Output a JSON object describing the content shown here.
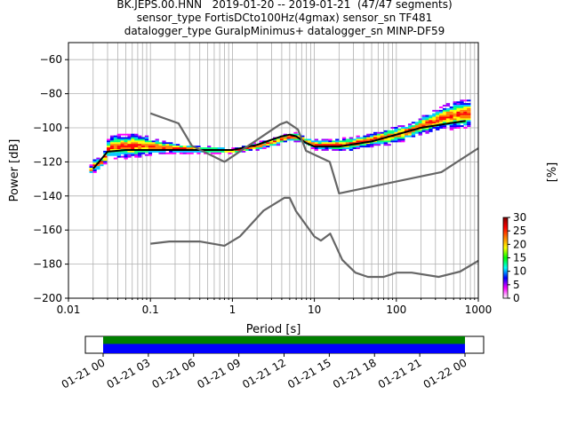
{
  "title": {
    "line1": "BK.JEPS.00.HNN   2019-01-20 -- 2019-01-21  (47/47 segments)",
    "line2": "sensor_type FortisDCto100Hz(4gmax) sensor_sn TF481",
    "line3": "datalogger_type GuralpMinimus+ datalogger_sn MINP-DF59"
  },
  "chart_data": [
    {
      "type": "heatmap",
      "xlabel": "Period [s]",
      "ylabel": "Power [dB]",
      "xscale": "log",
      "xlim": [
        0.01,
        1000
      ],
      "ylim": [
        -200,
        -50
      ],
      "xticks": [
        0.01,
        0.1,
        1,
        10,
        100,
        1000
      ],
      "xtick_labels": [
        "0.01",
        "0.1",
        "1",
        "10",
        "100",
        "1000"
      ],
      "yticks": [
        -60,
        -80,
        -100,
        -120,
        -140,
        -160,
        -180,
        -200
      ],
      "grid": true,
      "colorbar": {
        "label": "[%]",
        "ticks": [
          0,
          5,
          10,
          15,
          20,
          25,
          30
        ],
        "range": [
          0,
          30
        ],
        "colors": [
          "#ffffff",
          "#ff00ff",
          "#0000ff",
          "#00ffff",
          "#00ff00",
          "#ffff00",
          "#ff7f00",
          "#ff0000",
          "#7f0000"
        ]
      },
      "series": [
        {
          "role": "mean",
          "color": "#000000",
          "x": [
            0.02,
            0.03,
            0.05,
            0.1,
            0.2,
            0.5,
            1,
            2,
            3,
            4,
            5,
            6,
            8,
            10,
            20,
            50,
            100,
            200,
            500,
            700
          ],
          "y": [
            -124,
            -114,
            -113,
            -113,
            -113,
            -113,
            -113,
            -110,
            -107,
            -105,
            -104,
            -105,
            -109,
            -111,
            -111,
            -108,
            -104,
            -100,
            -97,
            -96
          ]
        },
        {
          "role": "nhnm",
          "color": "#666666",
          "x": [
            0.1,
            0.22,
            0.32,
            0.8,
            3.8,
            4.6,
            6.3,
            7.9,
            15.4,
            20,
            354.8,
            1000
          ],
          "y": [
            -91.5,
            -97.4,
            -110.5,
            -120,
            -98,
            -96.5,
            -101,
            -113.5,
            -120,
            -138.5,
            -126,
            -112
          ]
        },
        {
          "role": "nlnm",
          "color": "#666666",
          "x": [
            0.1,
            0.17,
            0.4,
            0.8,
            1.24,
            2.4,
            4.3,
            5,
            6,
            10,
            12,
            15.6,
            21.9,
            31.6,
            45,
            70,
            101,
            154,
            328,
            600,
            1000
          ],
          "y": [
            -168,
            -166.7,
            -166.7,
            -169.2,
            -163.7,
            -148.6,
            -141.1,
            -141.1,
            -149,
            -163.8,
            -166.2,
            -162.1,
            -177.5,
            -185,
            -187.5,
            -187.5,
            -185,
            -185,
            -187.5,
            -184.4,
            -178
          ]
        }
      ],
      "heat_band": {
        "x": [
          0.018,
          0.02,
          0.025,
          0.03,
          0.05,
          0.08,
          0.1,
          0.15,
          0.2,
          0.3,
          0.5,
          1,
          1.5,
          2,
          3,
          4,
          5,
          6,
          8,
          10,
          15,
          20,
          30,
          50,
          80,
          100,
          150,
          200,
          300,
          400,
          500,
          700,
          800
        ],
        "upper": [
          -122,
          -118,
          -117,
          -105,
          -103,
          -104,
          -106,
          -108,
          -109,
          -110,
          -111,
          -112,
          -110,
          -108,
          -106,
          -104,
          -103,
          -103,
          -106,
          -107,
          -107,
          -106,
          -105,
          -103,
          -100,
          -99,
          -97,
          -93,
          -89,
          -86,
          -84,
          -83,
          -83
        ],
        "lower": [
          -127,
          -126,
          -123,
          -118,
          -118,
          -117,
          -116,
          -115,
          -115,
          -115,
          -115,
          -115,
          -114,
          -113,
          -111,
          -109,
          -108,
          -108,
          -111,
          -113,
          -113,
          -114,
          -113,
          -111,
          -110,
          -109,
          -106,
          -104,
          -102,
          -101,
          -101,
          -100,
          -100
        ]
      }
    },
    {
      "type": "coverage",
      "xtick_labels": [
        "01-21 00",
        "01-21 03",
        "01-21 06",
        "01-21 09",
        "01-21 12",
        "01-21 15",
        "01-21 18",
        "01-21 21",
        "01-22 00"
      ],
      "xlim": [
        "01-20 21:30",
        "01-22 01:30"
      ],
      "bars": [
        {
          "role": "processed",
          "color": "#008000",
          "start": "01-21 00",
          "end": "01-22 00"
        },
        {
          "role": "available",
          "color": "#0000ff",
          "start": "01-21 00",
          "end": "01-22 00"
        }
      ]
    }
  ]
}
